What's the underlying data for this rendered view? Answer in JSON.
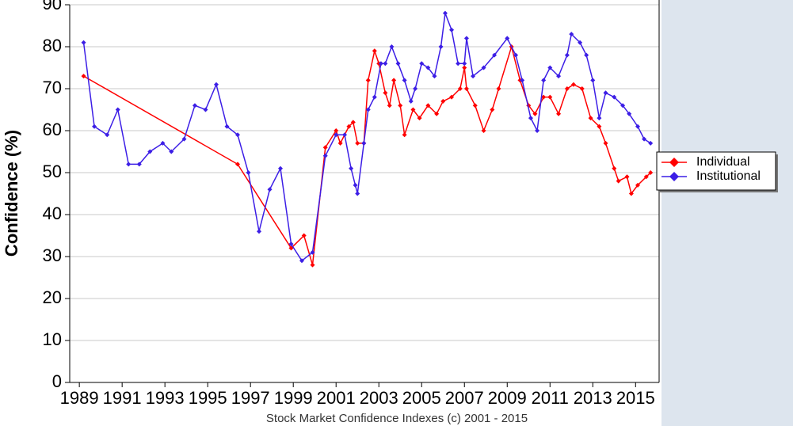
{
  "chart_data": {
    "type": "line",
    "x_label": "Stock Market Confidence Indexes (c) 2001 - 2015",
    "y_label": "Confidence (%)",
    "xlim": [
      1988.55,
      2016.1
    ],
    "ylim": [
      0,
      90
    ],
    "xticks": [
      1989,
      1991,
      1993,
      1995,
      1997,
      1999,
      2001,
      2003,
      2005,
      2007,
      2009,
      2011,
      2013,
      2015
    ],
    "yticks": [
      0,
      10,
      20,
      30,
      40,
      50,
      60,
      70,
      80,
      90
    ],
    "grid": true,
    "legend": "right",
    "series": [
      {
        "name": "Individual",
        "color": "#ff0000",
        "x": [
          1989.2,
          1996.4,
          1998.9,
          1999.5,
          1999.9,
          2000.5,
          2001.0,
          2001.2,
          2001.6,
          2001.8,
          2002.0,
          2002.3,
          2002.5,
          2002.8,
          2003.0,
          2003.3,
          2003.5,
          2003.7,
          2004.0,
          2004.2,
          2004.6,
          2004.9,
          2005.3,
          2005.7,
          2006.0,
          2006.4,
          2006.8,
          2007.0,
          2007.1,
          2007.5,
          2007.9,
          2008.3,
          2008.6,
          2009.2,
          2009.6,
          2010.0,
          2010.3,
          2010.7,
          2011.0,
          2011.4,
          2011.8,
          2012.1,
          2012.5,
          2012.9,
          2013.3,
          2013.6,
          2014.0,
          2014.2,
          2014.6,
          2014.8,
          2015.1,
          2015.5,
          2015.7
        ],
        "values": [
          73,
          52,
          32,
          35,
          28,
          56,
          60,
          57,
          61,
          62,
          57,
          57,
          72,
          79,
          76,
          69,
          66,
          72,
          66,
          59,
          65,
          63,
          66,
          64,
          67,
          68,
          70,
          75,
          70,
          66,
          60,
          65,
          70,
          80,
          72,
          66,
          64,
          68,
          68,
          64,
          70,
          71,
          70,
          63,
          61,
          57,
          51,
          48,
          49,
          45,
          47,
          49,
          50
        ]
      },
      {
        "name": "Institutional",
        "color": "#3c1ee6",
        "x": [
          1989.2,
          1989.7,
          1990.3,
          1990.8,
          1991.3,
          1991.8,
          1992.3,
          1992.9,
          1993.3,
          1993.9,
          1994.4,
          1994.9,
          1995.4,
          1995.9,
          1996.4,
          1996.9,
          1997.4,
          1997.9,
          1998.4,
          1998.9,
          1999.4,
          1999.9,
          2000.5,
          2001.0,
          2001.4,
          2001.7,
          2001.9,
          2002.0,
          2002.3,
          2002.5,
          2002.8,
          2003.1,
          2003.3,
          2003.6,
          2003.9,
          2004.2,
          2004.5,
          2004.7,
          2005.0,
          2005.3,
          2005.6,
          2005.9,
          2006.1,
          2006.4,
          2006.7,
          2007.0,
          2007.1,
          2007.4,
          2007.9,
          2008.4,
          2009.0,
          2009.4,
          2009.7,
          2010.1,
          2010.4,
          2010.7,
          2011.0,
          2011.4,
          2011.8,
          2012.0,
          2012.4,
          2012.7,
          2013.0,
          2013.3,
          2013.6,
          2014.0,
          2014.4,
          2014.7,
          2015.1,
          2015.4,
          2015.7
        ],
        "values": [
          81,
          61,
          59,
          65,
          52,
          52,
          55,
          57,
          55,
          58,
          66,
          65,
          71,
          61,
          59,
          50,
          36,
          46,
          51,
          33,
          29,
          31,
          54,
          59,
          59,
          51,
          47,
          45,
          57,
          65,
          68,
          76,
          76,
          80,
          76,
          72,
          67,
          70,
          76,
          75,
          73,
          80,
          88,
          84,
          76,
          76,
          82,
          73,
          75,
          78,
          82,
          78,
          72,
          63,
          60,
          72,
          75,
          73,
          78,
          83,
          81,
          78,
          72,
          63,
          69,
          68,
          66,
          64,
          61,
          58,
          57
        ]
      }
    ]
  }
}
